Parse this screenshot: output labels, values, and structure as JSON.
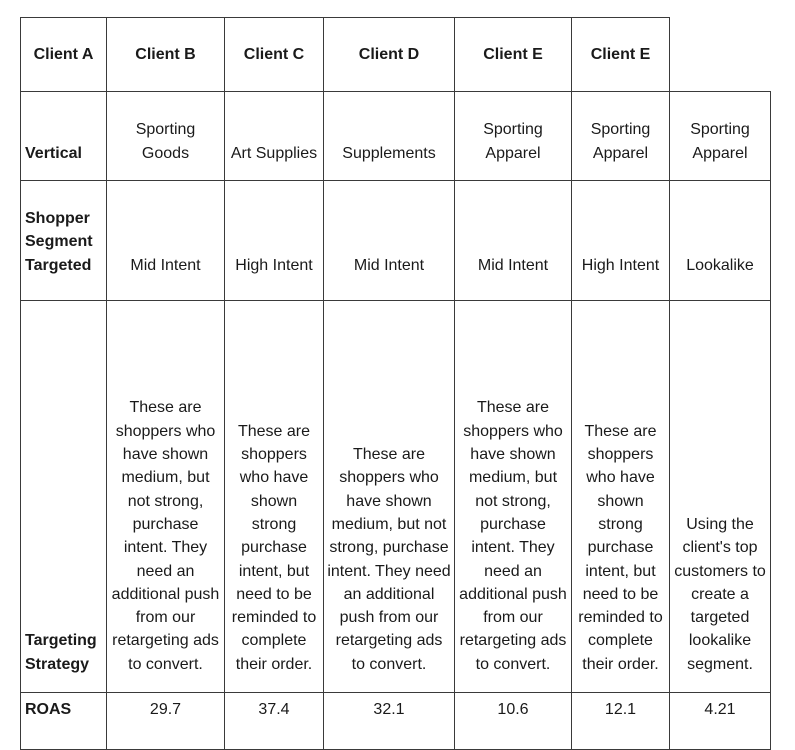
{
  "table": {
    "headers": [
      "Client A",
      "Client B",
      "Client C",
      "Client D",
      "Client E",
      "Client E"
    ],
    "rows": [
      {
        "label": "Vertical",
        "cells": [
          "Sporting Goods",
          "Art Supplies",
          "Supplements",
          "Sporting Apparel",
          "Sporting Apparel",
          "Sporting Apparel"
        ]
      },
      {
        "label": "Shopper Segment Targeted",
        "cells": [
          "Mid Intent",
          "High Intent",
          "Mid Intent",
          "Mid Intent",
          "High Intent",
          "Lookalike"
        ]
      },
      {
        "label": "Targeting Strategy",
        "cells": [
          "These are shoppers who have shown medium, but not strong, purchase intent. They need an additional push from our retargeting ads to convert.",
          "These are shoppers who have shown strong purchase intent, but need to be reminded to complete their order.",
          "These are shoppers who have shown medium, but not strong, purchase intent. They need an additional push from our retargeting ads to convert.",
          "These are shoppers who have shown medium, but not strong, purchase intent. They need an additional push from our retargeting ads to convert.",
          "These are shoppers who have shown strong purchase intent, but need to be reminded to complete their order.",
          "Using the client's top customers to create a targeted lookalike segment."
        ]
      },
      {
        "label": "ROAS",
        "cells": [
          "29.7",
          "37.4",
          "32.1",
          "10.6",
          "12.1",
          "4.21"
        ]
      }
    ]
  }
}
